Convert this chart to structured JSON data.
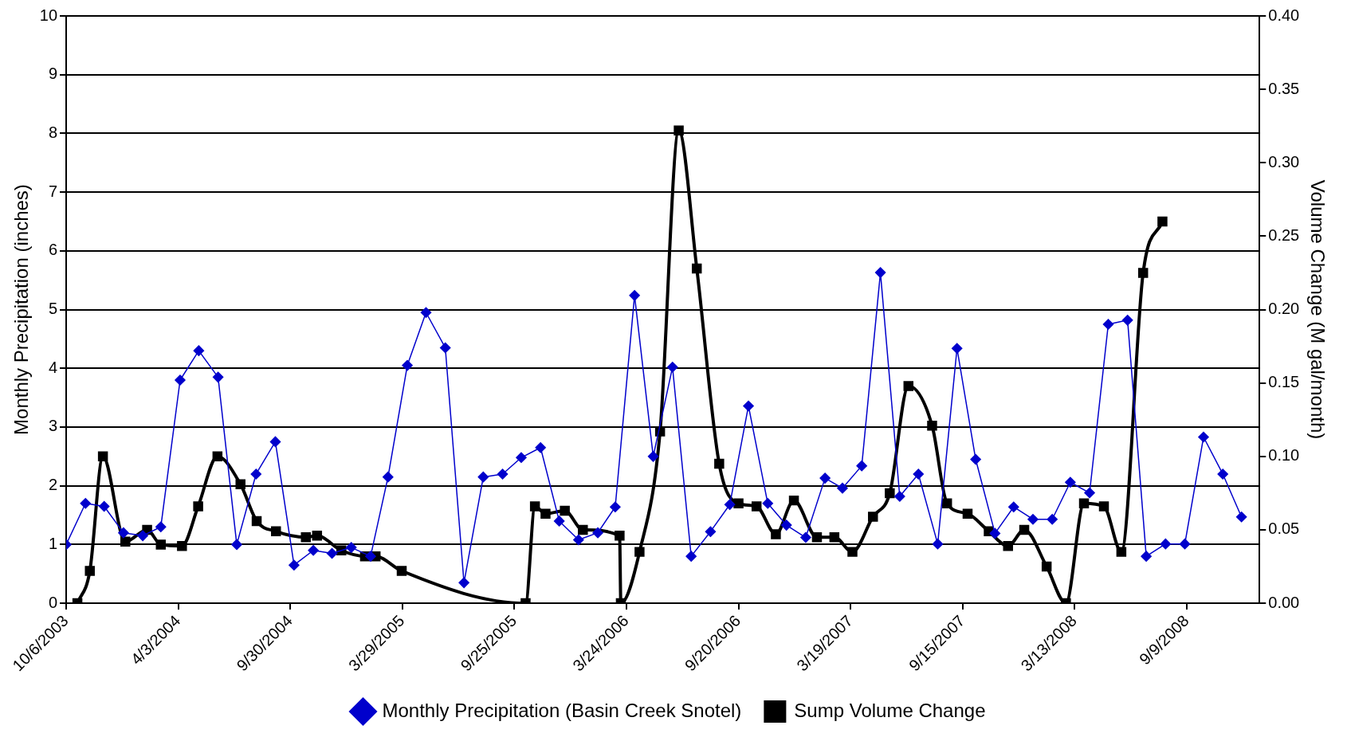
{
  "chart_data": {
    "type": "line",
    "ylabel": "Monthly Precipitation (inches)",
    "y2label": "Volume Change (M gal/month)",
    "xlim": [
      "2003-10-06",
      "2009-01-04"
    ],
    "xticks": [
      {
        "value": "2003-10-06",
        "label": "10/6/2003"
      },
      {
        "value": "2004-04-03",
        "label": "4/3/2004"
      },
      {
        "value": "2004-09-30",
        "label": "9/30/2004"
      },
      {
        "value": "2005-03-29",
        "label": "3/29/2005"
      },
      {
        "value": "2005-09-25",
        "label": "9/25/2005"
      },
      {
        "value": "2006-03-24",
        "label": "3/24/2006"
      },
      {
        "value": "2006-09-20",
        "label": "9/20/2006"
      },
      {
        "value": "2007-03-19",
        "label": "3/19/2007"
      },
      {
        "value": "2007-09-15",
        "label": "9/15/2007"
      },
      {
        "value": "2008-03-13",
        "label": "3/13/2008"
      },
      {
        "value": "2008-09-09",
        "label": "9/9/2008"
      }
    ],
    "ylim": [
      0,
      10
    ],
    "yticks": [
      0,
      1,
      2,
      3,
      4,
      5,
      6,
      7,
      8,
      9,
      10
    ],
    "y2lim": [
      0,
      0.4
    ],
    "y2ticks": [
      {
        "value": 0,
        "label": "0.00"
      },
      0.05,
      {
        "value": 0.1,
        "label": "0.10"
      },
      0.15,
      {
        "value": 0.2,
        "label": "0.20"
      },
      0.25,
      {
        "value": 0.3,
        "label": "0.30"
      },
      0.35,
      {
        "value": 0.4,
        "label": "0.40"
      }
    ],
    "grid": "y",
    "legend": "bottom",
    "series": [
      {
        "name": "Monthly Precipitation (Basin Creek Snotel)",
        "color": "#0000cc",
        "marker": "diamond",
        "x": [
          "2003-10-06",
          "2003-11-06",
          "2003-12-06",
          "2004-01-06",
          "2004-02-06",
          "2004-03-06",
          "2004-04-06",
          "2004-05-06",
          "2004-06-06",
          "2004-07-06",
          "2004-08-06",
          "2004-09-06",
          "2004-10-06",
          "2004-11-06",
          "2004-12-06",
          "2005-01-06",
          "2005-02-06",
          "2005-03-06",
          "2005-04-06",
          "2005-05-06",
          "2005-06-06",
          "2005-07-06",
          "2005-08-06",
          "2005-09-06",
          "2005-10-06",
          "2005-11-06",
          "2005-12-06",
          "2006-01-06",
          "2006-02-06",
          "2006-03-06",
          "2006-04-06",
          "2006-05-06",
          "2006-06-06",
          "2006-07-06",
          "2006-08-06",
          "2006-09-06",
          "2006-10-06",
          "2006-11-06",
          "2006-12-06",
          "2007-01-06",
          "2007-02-06",
          "2007-03-06",
          "2007-04-06",
          "2007-05-06",
          "2007-06-06",
          "2007-07-06",
          "2007-08-06",
          "2007-09-06",
          "2007-10-06",
          "2007-11-06",
          "2007-12-06",
          "2008-01-06",
          "2008-02-06",
          "2008-03-06",
          "2008-04-06",
          "2008-05-06",
          "2008-06-06",
          "2008-07-06",
          "2008-08-06",
          "2008-09-06",
          "2008-10-06",
          "2008-11-06",
          "2008-12-06"
        ],
        "values": [
          1.0,
          1.7,
          1.65,
          1.2,
          1.15,
          1.3,
          3.8,
          4.3,
          3.85,
          1.0,
          2.2,
          2.75,
          0.65,
          0.9,
          0.85,
          0.95,
          0.8,
          2.15,
          4.05,
          4.95,
          4.35,
          0.35,
          2.15,
          2.2,
          2.48,
          2.65,
          1.4,
          1.08,
          1.2,
          1.64,
          5.24,
          2.5,
          4.02,
          0.8,
          1.22,
          1.68,
          3.36,
          1.7,
          1.33,
          1.12,
          2.13,
          1.96,
          2.34,
          5.63,
          1.82,
          2.2,
          1.01,
          4.34,
          2.45,
          1.19,
          1.64,
          1.43,
          1.43,
          2.06,
          1.88,
          4.75,
          4.82,
          0.8,
          1.01,
          1.01,
          2.83,
          2.2,
          1.47
        ]
      },
      {
        "name": "Sump Volume Change",
        "color": "#000000",
        "marker": "square",
        "axis": "y2",
        "x": [
          "2003-10-24",
          "2003-11-13",
          "2003-12-04",
          "2004-01-09",
          "2004-02-13",
          "2004-03-06",
          "2004-04-09",
          "2004-05-05",
          "2004-06-05",
          "2004-07-12",
          "2004-08-07",
          "2004-09-07",
          "2004-10-25",
          "2004-11-12",
          "2004-12-21",
          "2005-01-28",
          "2005-02-14",
          "2005-03-28",
          "2005-10-13",
          "2005-10-28",
          "2005-11-14",
          "2005-12-15",
          "2006-01-13",
          "2006-03-13",
          "2006-03-15",
          "2006-04-14",
          "2006-05-17",
          "2006-06-16",
          "2006-07-15",
          "2006-08-20",
          "2006-09-20",
          "2006-10-19",
          "2006-11-19",
          "2006-12-18",
          "2007-01-24",
          "2007-02-21",
          "2007-03-22",
          "2007-04-24",
          "2007-05-21",
          "2007-06-20",
          "2007-07-28",
          "2007-08-21",
          "2007-09-23",
          "2007-10-27",
          "2007-11-27",
          "2007-12-23",
          "2008-01-28",
          "2008-02-28",
          "2008-03-28",
          "2008-04-29",
          "2008-05-27",
          "2008-07-01",
          "2008-08-01"
        ],
        "values": [
          0.0,
          0.022,
          0.1,
          0.042,
          0.05,
          0.04,
          0.039,
          0.066,
          0.1,
          0.081,
          0.056,
          0.049,
          0.045,
          0.046,
          0.036,
          0.032,
          0.032,
          0.022,
          0.0,
          0.066,
          0.061,
          0.063,
          0.05,
          0.046,
          0.0,
          0.035,
          0.117,
          0.322,
          0.228,
          0.095,
          0.068,
          0.066,
          0.047,
          0.07,
          0.045,
          0.045,
          0.035,
          0.059,
          0.075,
          0.148,
          0.121,
          0.068,
          0.061,
          0.049,
          0.039,
          0.05,
          0.025,
          0.0,
          0.068,
          0.066,
          0.035,
          0.225,
          0.26
        ]
      }
    ]
  }
}
